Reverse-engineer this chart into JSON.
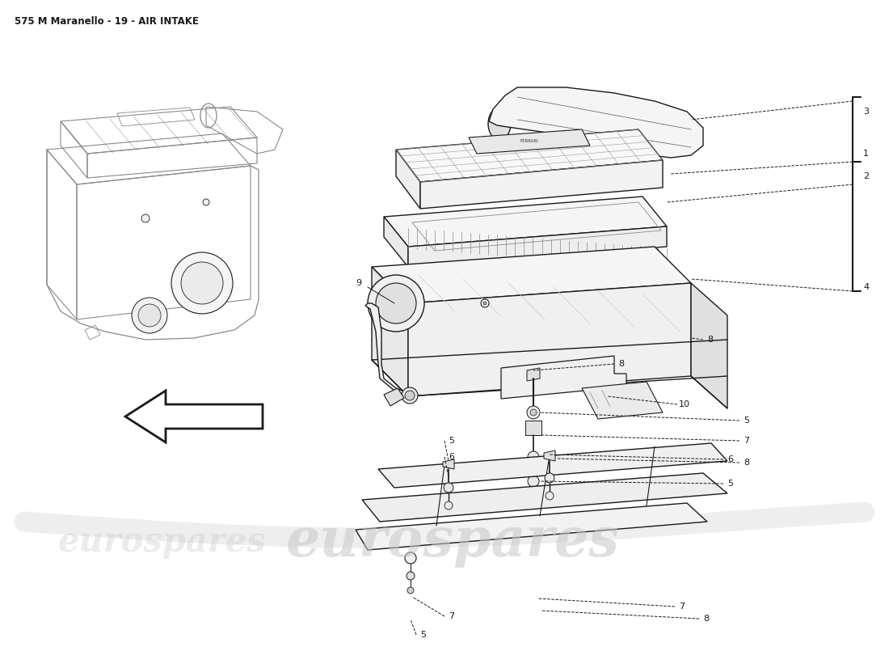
{
  "title": "575 M Maranello - 19 - AIR INTAKE",
  "title_fontsize": 8.5,
  "bg": "#ffffff",
  "lc": "#1a1a1a",
  "lw": 1.0,
  "watermark": "eurospares",
  "wm_color": "#c8c8c8",
  "wm_alpha": 0.55,
  "wm_fontsize": 48,
  "part_label_fontsize": 8
}
